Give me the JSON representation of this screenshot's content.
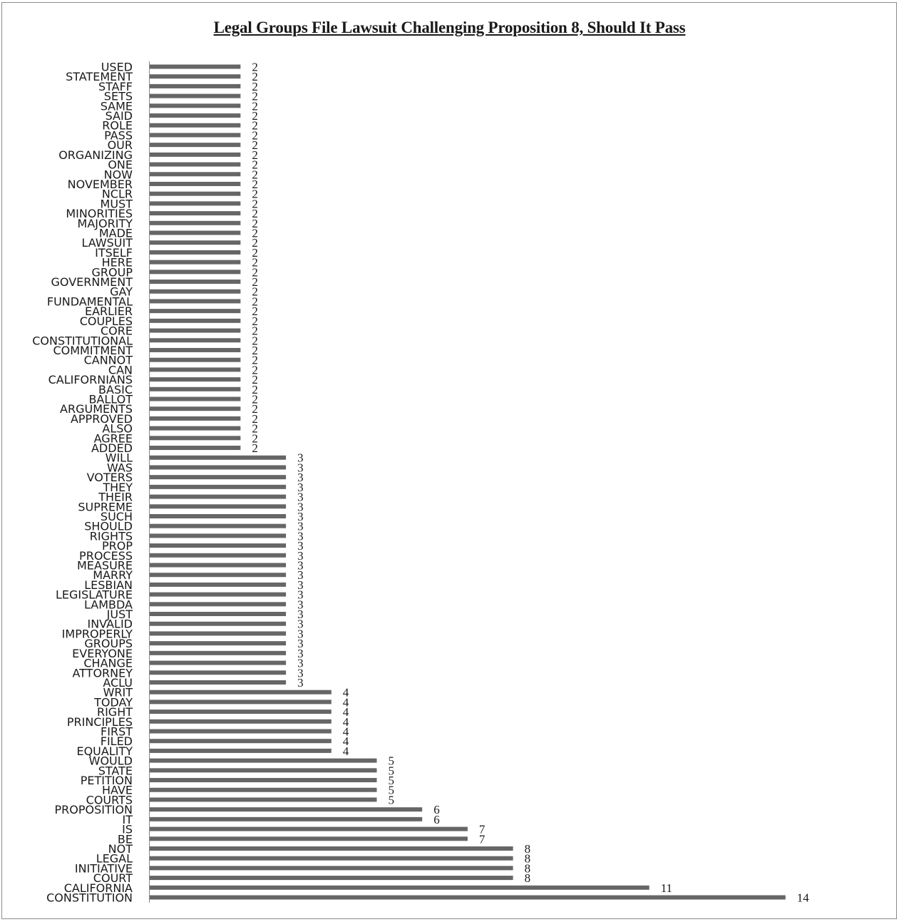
{
  "chart_data": {
    "type": "bar",
    "orientation": "horizontal",
    "title": "Legal Groups File Lawsuit Challenging Proposition 8, Should It Pass",
    "xlabel": "",
    "ylabel": "",
    "xlim": [
      0,
      14
    ],
    "grid": false,
    "legend": "none",
    "bar_color": "#666666",
    "categories": [
      "USED",
      "STATEMENT",
      "STAFF",
      "SETS",
      "SAME",
      "SAID",
      "ROLE",
      "PASS",
      "OUR",
      "ORGANIZING",
      "ONE",
      "NOW",
      "NOVEMBER",
      "NCLR",
      "MUST",
      "MINORITIES",
      "MAJORITY",
      "MADE",
      "LAWSUIT",
      "ITSELF",
      "HERE",
      "GROUP",
      "GOVERNMENT",
      "GAY",
      "FUNDAMENTAL",
      "EARLIER",
      "COUPLES",
      "CORE",
      "CONSTITUTIONAL",
      "COMMITMENT",
      "CANNOT",
      "CAN",
      "CALIFORNIANS",
      "BASIC",
      "BALLOT",
      "ARGUMENTS",
      "APPROVED",
      "ALSO",
      "AGREE",
      "ADDED",
      "WILL",
      "WAS",
      "VOTERS",
      "THEY",
      "THEIR",
      "SUPREME",
      "SUCH",
      "SHOULD",
      "RIGHTS",
      "PROP",
      "PROCESS",
      "MEASURE",
      "MARRY",
      "LESBIAN",
      "LEGISLATURE",
      "LAMBDA",
      "JUST",
      "INVALID",
      "IMPROPERLY",
      "GROUPS",
      "EVERYONE",
      "CHANGE",
      "ATTORNEY",
      "ACLU",
      "WRIT",
      "TODAY",
      "RIGHT",
      "PRINCIPLES",
      "FIRST",
      "FILED",
      "EQUALITY",
      "WOULD",
      "STATE",
      "PETITION",
      "HAVE",
      "COURTS",
      "PROPOSITION",
      "IT",
      "IS",
      "BE",
      "NOT",
      "LEGAL",
      "INITIATIVE",
      "COURT",
      "CALIFORNIA",
      "CONSTITUTION"
    ],
    "values": [
      2,
      2,
      2,
      2,
      2,
      2,
      2,
      2,
      2,
      2,
      2,
      2,
      2,
      2,
      2,
      2,
      2,
      2,
      2,
      2,
      2,
      2,
      2,
      2,
      2,
      2,
      2,
      2,
      2,
      2,
      2,
      2,
      2,
      2,
      2,
      2,
      2,
      2,
      2,
      2,
      3,
      3,
      3,
      3,
      3,
      3,
      3,
      3,
      3,
      3,
      3,
      3,
      3,
      3,
      3,
      3,
      3,
      3,
      3,
      3,
      3,
      3,
      3,
      3,
      4,
      4,
      4,
      4,
      4,
      4,
      4,
      5,
      5,
      5,
      5,
      5,
      6,
      6,
      7,
      7,
      8,
      8,
      8,
      8,
      11,
      14
    ]
  }
}
